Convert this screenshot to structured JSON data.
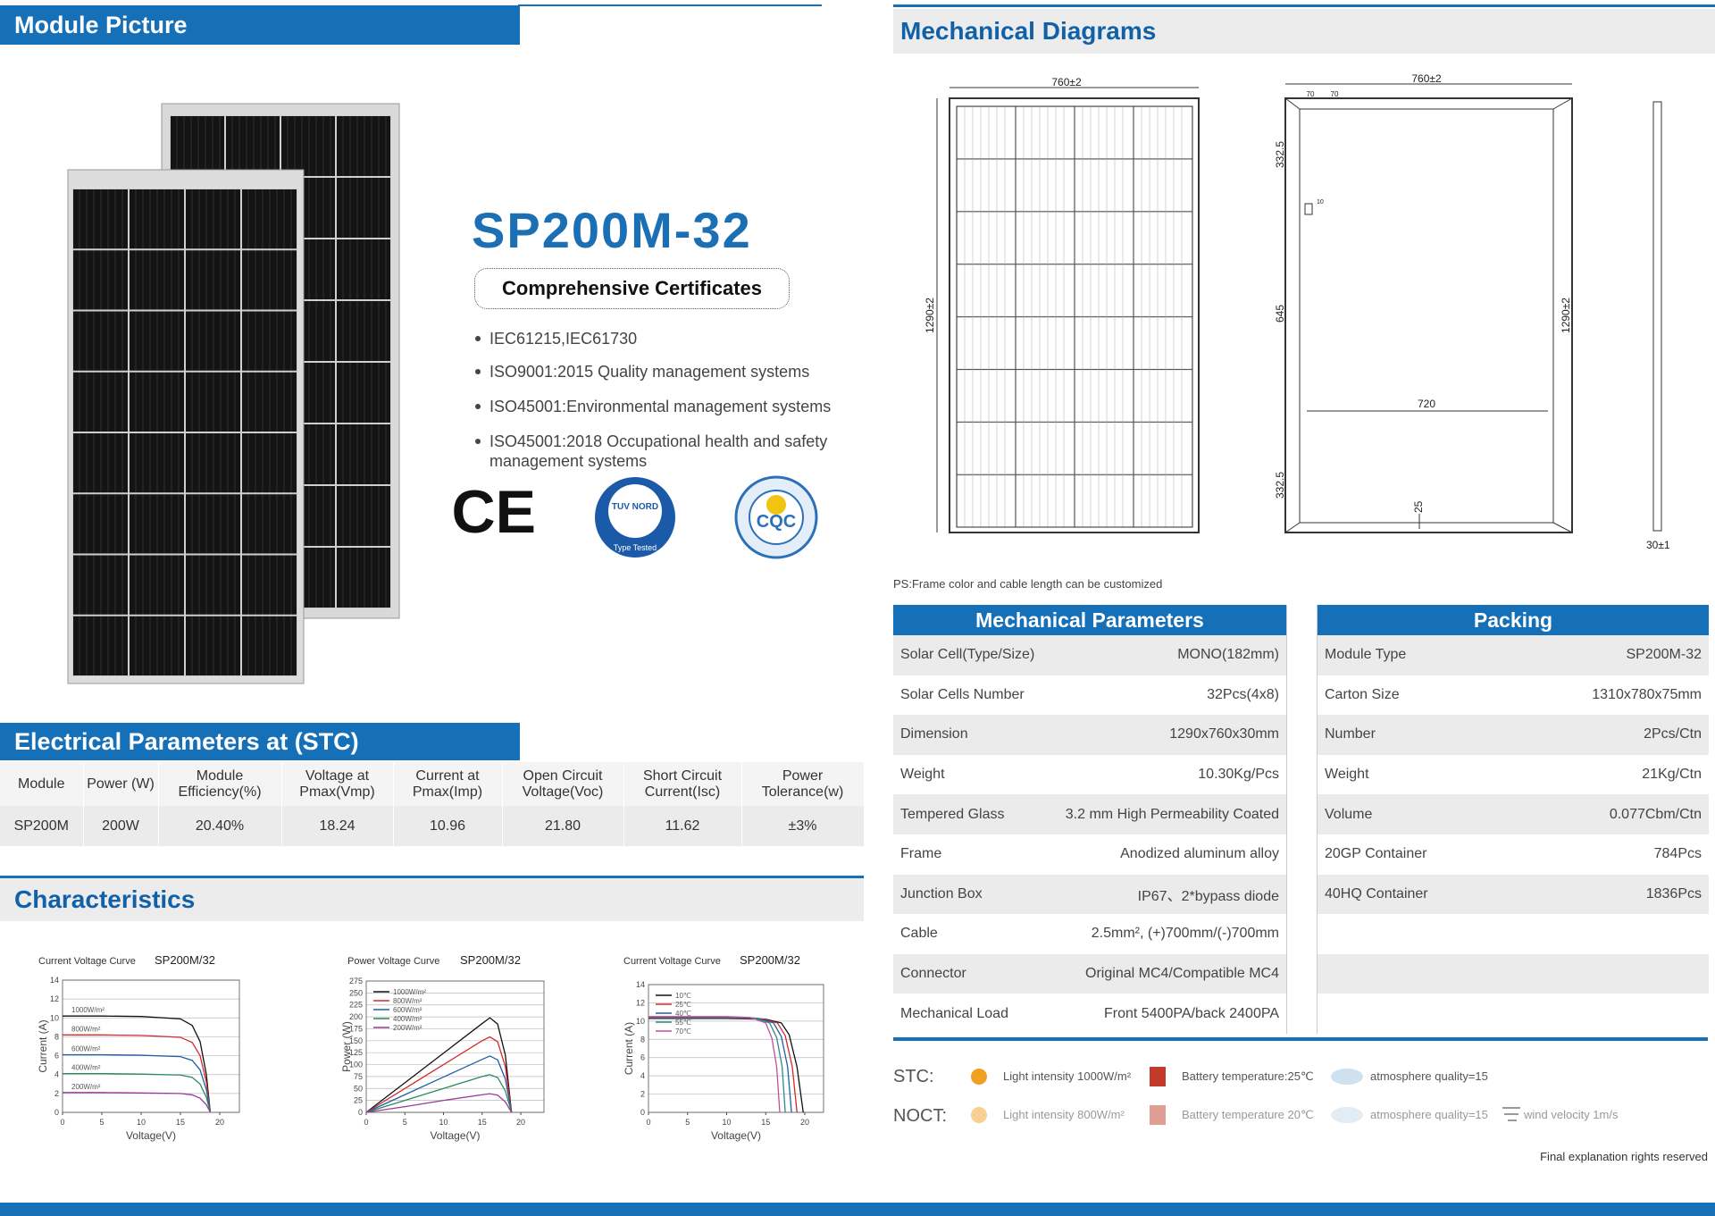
{
  "module_picture": {
    "title": "Module Picture"
  },
  "product": {
    "model": "SP200M-32"
  },
  "certificates": {
    "title": "Comprehensive Certificates",
    "items": [
      "IEC61215,IEC61730",
      "ISO9001:2015 Quality management systems",
      "ISO45001:Environmental management systems",
      "ISO45001:2018 Occupational health and safety management systems"
    ],
    "logos": {
      "ce": "CE",
      "tuv": "TUV NORD",
      "tuv_sub": "Type Tested",
      "cqc": "CQC"
    }
  },
  "electrical": {
    "title": "Electrical Parameters at (STC)",
    "headers": [
      "Module",
      "Power (W)",
      "Module Efficiency(%)",
      "Voltage at Pmax(Vmp)",
      "Current at Pmax(Imp)",
      "Open Circuit Voltage(Voc)",
      "Short Circuit Current(Isc)",
      "Power Tolerance(w)"
    ],
    "rows": [
      [
        "SP200M",
        "200W",
        "20.40%",
        "18.24",
        "10.96",
        "21.80",
        "11.62",
        "±3%"
      ]
    ]
  },
  "characteristics": {
    "title": "Characteristics"
  },
  "chart_data": [
    {
      "type": "line",
      "title": "Current Voltage Curve",
      "subtitle": "SP200M/32",
      "x_label": "Voltage(V)",
      "y_label": "Current (A)",
      "xlim": [
        0,
        22.5
      ],
      "xticks": [
        0,
        5,
        10,
        15,
        20
      ],
      "ylim": [
        0,
        14
      ],
      "yticks": [
        0,
        2,
        4,
        6,
        8,
        10,
        12,
        14
      ],
      "grid": true,
      "legend": "inline",
      "x": [
        0,
        5,
        10,
        15,
        16.5,
        17.5,
        18.3,
        18.8
      ],
      "series": [
        {
          "name": "1000W/m²",
          "color": "#111111",
          "values": [
            10.2,
            10.2,
            10.15,
            9.9,
            9.2,
            7.5,
            4,
            0
          ]
        },
        {
          "name": "800W/m²",
          "color": "#d42a2a",
          "values": [
            8.2,
            8.2,
            8.15,
            7.95,
            7.4,
            6,
            3.2,
            0
          ]
        },
        {
          "name": "600W/m²",
          "color": "#1f5fa8",
          "values": [
            6.1,
            6.1,
            6.05,
            5.9,
            5.5,
            4.5,
            2.4,
            0
          ]
        },
        {
          "name": "400W/m²",
          "color": "#2a8a5a",
          "values": [
            4.1,
            4.1,
            4.05,
            3.95,
            3.7,
            3,
            1.6,
            0
          ]
        },
        {
          "name": "200W/m²",
          "color": "#9a3a9a",
          "values": [
            2.1,
            2.1,
            2.05,
            2,
            1.85,
            1.5,
            0.8,
            0
          ]
        }
      ]
    },
    {
      "type": "line",
      "title": "Power Voltage Curve",
      "subtitle": "SP200M/32",
      "x_label": "Voltage(V)",
      "y_label": "Power (W)",
      "xlim": [
        0,
        23
      ],
      "xticks": [
        0,
        5,
        10,
        15,
        20
      ],
      "ylim": [
        0,
        275
      ],
      "yticks": [
        0,
        25,
        50,
        75,
        100,
        125,
        150,
        175,
        200,
        225,
        250,
        275
      ],
      "grid": true,
      "legend": "upper left",
      "x": [
        0,
        5,
        10,
        15,
        16,
        17,
        18,
        18.8
      ],
      "series": [
        {
          "name": "1000W/m²",
          "color": "#111111",
          "values": [
            0,
            62,
            124,
            186,
            198,
            185,
            120,
            0
          ]
        },
        {
          "name": "800W/m²",
          "color": "#d42a2a",
          "values": [
            0,
            50,
            100,
            150,
            158,
            148,
            96,
            0
          ]
        },
        {
          "name": "600W/m²",
          "color": "#1f5fa8",
          "values": [
            0,
            37,
            74,
            111,
            118,
            110,
            70,
            0
          ]
        },
        {
          "name": "400W/m²",
          "color": "#2a8a5a",
          "values": [
            0,
            25,
            50,
            75,
            79,
            73,
            45,
            0
          ]
        },
        {
          "name": "200W/m²",
          "color": "#9a3a9a",
          "values": [
            0,
            12,
            25,
            37,
            39,
            36,
            22,
            0
          ]
        }
      ]
    },
    {
      "type": "line",
      "title": "Current Voltage Curve",
      "subtitle": "SP200M/32",
      "x_label": "Voltage(V)",
      "y_label": "Current (A)",
      "xlim": [
        0,
        22.4
      ],
      "xticks": [
        0,
        5,
        10,
        15,
        20
      ],
      "ylim": [
        0,
        14
      ],
      "yticks": [
        0,
        2,
        4,
        6,
        8,
        10,
        12,
        14
      ],
      "grid": true,
      "legend": "upper left",
      "series": [
        {
          "name": "10℃",
          "color": "#111111",
          "x": [
            0,
            10,
            15,
            17,
            18,
            19,
            19.8
          ],
          "values": [
            10.3,
            10.3,
            10.2,
            9.8,
            8.5,
            5,
            0
          ]
        },
        {
          "name": "25℃",
          "color": "#d42a2a",
          "x": [
            0,
            10,
            14.5,
            16.5,
            17.5,
            18.4,
            19
          ],
          "values": [
            10.35,
            10.35,
            10.25,
            9.8,
            8.4,
            5,
            0
          ]
        },
        {
          "name": "40℃",
          "color": "#1f5fa8",
          "x": [
            0,
            10,
            14,
            16,
            17,
            17.8,
            18.3
          ],
          "values": [
            10.4,
            10.4,
            10.3,
            9.8,
            8.3,
            5,
            0
          ]
        },
        {
          "name": "55℃",
          "color": "#2a8a8a",
          "x": [
            0,
            10,
            13.5,
            15.5,
            16.4,
            17.1,
            17.5
          ],
          "values": [
            10.45,
            10.45,
            10.35,
            9.8,
            8.2,
            5,
            0
          ]
        },
        {
          "name": "70℃",
          "color": "#c0509a",
          "x": [
            0,
            10,
            13,
            15,
            15.8,
            16.4,
            16.8
          ],
          "values": [
            10.5,
            10.5,
            10.4,
            9.8,
            8.1,
            5,
            0
          ]
        }
      ]
    }
  ],
  "mechanical_diagrams": {
    "title": "Mechanical Diagrams",
    "labels": {
      "front_width": "760±2",
      "front_height": "1290±2",
      "back_width": "760±2",
      "hole_a": "70",
      "hole_b": "70",
      "top_offset": "332.5",
      "slot": "10",
      "mid_span": "645",
      "back_height": "1290±2",
      "hole_span": "720",
      "bottom_offset": "332.5",
      "drain": "25",
      "thickness": "30±1"
    },
    "note": "PS:Frame color and cable length can be customized"
  },
  "mechanical_parameters": {
    "title": "Mechanical Parameters",
    "rows": [
      [
        "Solar Cell(Type/Size)",
        "MONO(182mm)"
      ],
      [
        "Solar Cells Number",
        "32Pcs(4x8)"
      ],
      [
        "Dimension",
        "1290x760x30mm"
      ],
      [
        "Weight",
        "10.30Kg/Pcs"
      ],
      [
        "Tempered Glass",
        "3.2 mm High Permeability Coated"
      ],
      [
        "Frame",
        "Anodized aluminum alloy"
      ],
      [
        "Junction Box",
        "IP67、2*bypass diode"
      ],
      [
        "Cable",
        "2.5mm², (+)700mm/(-)700mm"
      ],
      [
        "Connector",
        "Original MC4/Compatible MC4"
      ],
      [
        "Mechanical Load",
        "Front 5400PA/back 2400PA"
      ]
    ]
  },
  "packing": {
    "title": "Packing",
    "rows": [
      [
        "Module Type",
        "SP200M-32"
      ],
      [
        "Carton Size",
        "1310x780x75mm"
      ],
      [
        "Number",
        "2Pcs/Ctn"
      ],
      [
        "Weight",
        "21Kg/Ctn"
      ],
      [
        "Volume",
        "0.077Cbm/Ctn"
      ],
      [
        "20GP Container",
        "784Pcs"
      ],
      [
        "40HQ Container",
        "1836Pcs"
      ]
    ]
  },
  "conditions": {
    "stc": {
      "label": "STC:",
      "items": [
        "Light intensity 1000W/m²",
        "Battery temperature:25℃",
        "atmosphere quality=15"
      ]
    },
    "noct": {
      "label": "NOCT:",
      "items": [
        "Light intensity 800W/m²",
        "Battery temperature 20℃",
        "atmosphere quality=15",
        "wind velocity 1m/s"
      ]
    }
  },
  "footer": "Final explanation rights reserved"
}
